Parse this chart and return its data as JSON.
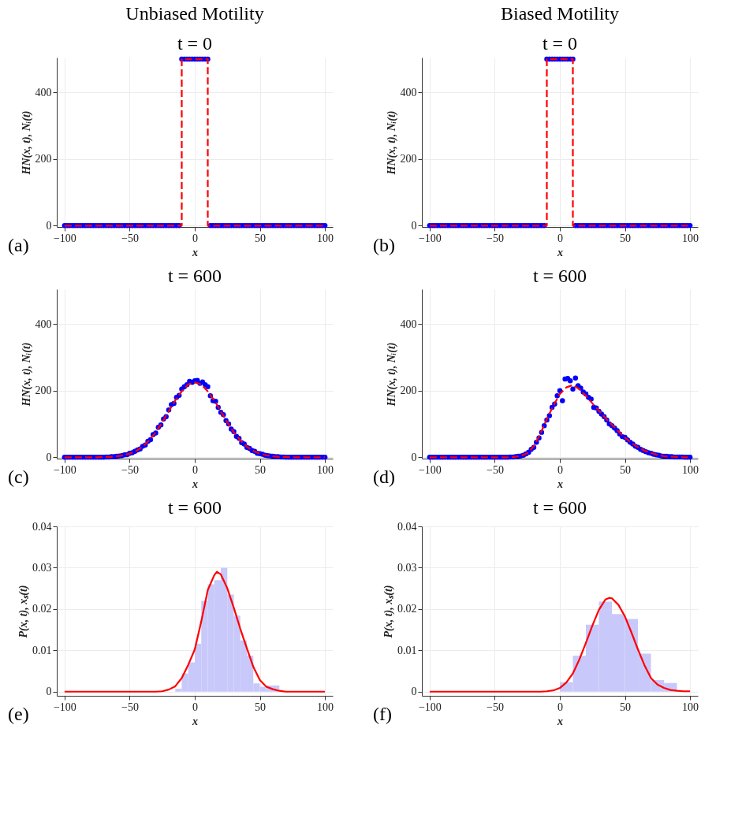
{
  "chart_data": [
    {
      "type": "scatter",
      "title": "Unbiased Motility",
      "subtitle": "t = 0",
      "xlabel": "x",
      "ylabel": "HN(x, t),   Nᵢ(t)",
      "annotations": [
        "(a)"
      ],
      "xlim": [
        -106,
        106
      ],
      "ylim": [
        -4,
        505
      ],
      "xticks": [
        -100,
        -50,
        0,
        50,
        100
      ],
      "yticks": [
        0,
        200,
        400
      ],
      "grid": true,
      "x": [
        -100,
        -98,
        -96,
        -94,
        -92,
        -90,
        -88,
        -86,
        -84,
        -82,
        -80,
        -78,
        -76,
        -74,
        -72,
        -70,
        -68,
        -66,
        -64,
        -62,
        -60,
        -58,
        -56,
        -54,
        -52,
        -50,
        -48,
        -46,
        -44,
        -42,
        -40,
        -38,
        -36,
        -34,
        -32,
        -30,
        -28,
        -26,
        -24,
        -22,
        -20,
        -18,
        -16,
        -14,
        -12,
        -10,
        -8,
        -6,
        -4,
        -2,
        0,
        2,
        4,
        6,
        8,
        10,
        12,
        14,
        16,
        18,
        20,
        22,
        24,
        26,
        28,
        30,
        32,
        34,
        36,
        38,
        40,
        42,
        44,
        46,
        48,
        50,
        52,
        54,
        56,
        58,
        60,
        62,
        64,
        66,
        68,
        70,
        72,
        74,
        76,
        78,
        80,
        82,
        84,
        86,
        88,
        90,
        92,
        94,
        96,
        98,
        100
      ],
      "series": [
        {
          "color": "#0000ff",
          "marker": "circle",
          "values": [
            0,
            0,
            0,
            0,
            0,
            0,
            0,
            0,
            0,
            0,
            0,
            0,
            0,
            0,
            0,
            0,
            0,
            0,
            0,
            0,
            0,
            0,
            0,
            0,
            0,
            0,
            0,
            0,
            0,
            0,
            0,
            0,
            0,
            0,
            0,
            0,
            0,
            0,
            0,
            0,
            0,
            0,
            0,
            0,
            0,
            500,
            500,
            500,
            500,
            500,
            500,
            500,
            500,
            500,
            500,
            500,
            0,
            0,
            0,
            0,
            0,
            0,
            0,
            0,
            0,
            0,
            0,
            0,
            0,
            0,
            0,
            0,
            0,
            0,
            0,
            0,
            0,
            0,
            0,
            0,
            0,
            0,
            0,
            0,
            0,
            0,
            0,
            0,
            0,
            0,
            0,
            0,
            0,
            0,
            0,
            0,
            0,
            0,
            0,
            0,
            0
          ]
        },
        {
          "type": "line",
          "color": "#ff0000",
          "line_style": "dashed",
          "x": [
            -100,
            -10,
            -10,
            10,
            10,
            100
          ],
          "values": [
            0,
            0,
            500,
            500,
            0,
            0
          ]
        }
      ]
    },
    {
      "type": "scatter",
      "title": "Biased Motility",
      "subtitle": "t = 0",
      "xlabel": "x",
      "ylabel": "HN(x, t),   Nᵢ(t)",
      "annotations": [
        "(b)"
      ],
      "xlim": [
        -106,
        106
      ],
      "ylim": [
        -4,
        505
      ],
      "xticks": [
        -100,
        -50,
        0,
        50,
        100
      ],
      "yticks": [
        0,
        200,
        400
      ],
      "grid": true,
      "x": [
        -100,
        -98,
        -96,
        -94,
        -92,
        -90,
        -88,
        -86,
        -84,
        -82,
        -80,
        -78,
        -76,
        -74,
        -72,
        -70,
        -68,
        -66,
        -64,
        -62,
        -60,
        -58,
        -56,
        -54,
        -52,
        -50,
        -48,
        -46,
        -44,
        -42,
        -40,
        -38,
        -36,
        -34,
        -32,
        -30,
        -28,
        -26,
        -24,
        -22,
        -20,
        -18,
        -16,
        -14,
        -12,
        -10,
        -8,
        -6,
        -4,
        -2,
        0,
        2,
        4,
        6,
        8,
        10,
        12,
        14,
        16,
        18,
        20,
        22,
        24,
        26,
        28,
        30,
        32,
        34,
        36,
        38,
        40,
        42,
        44,
        46,
        48,
        50,
        52,
        54,
        56,
        58,
        60,
        62,
        64,
        66,
        68,
        70,
        72,
        74,
        76,
        78,
        80,
        82,
        84,
        86,
        88,
        90,
        92,
        94,
        96,
        98,
        100
      ],
      "series": [
        {
          "color": "#0000ff",
          "marker": "circle",
          "values": [
            0,
            0,
            0,
            0,
            0,
            0,
            0,
            0,
            0,
            0,
            0,
            0,
            0,
            0,
            0,
            0,
            0,
            0,
            0,
            0,
            0,
            0,
            0,
            0,
            0,
            0,
            0,
            0,
            0,
            0,
            0,
            0,
            0,
            0,
            0,
            0,
            0,
            0,
            0,
            0,
            0,
            0,
            0,
            0,
            0,
            500,
            500,
            500,
            500,
            500,
            500,
            500,
            500,
            500,
            500,
            500,
            0,
            0,
            0,
            0,
            0,
            0,
            0,
            0,
            0,
            0,
            0,
            0,
            0,
            0,
            0,
            0,
            0,
            0,
            0,
            0,
            0,
            0,
            0,
            0,
            0,
            0,
            0,
            0,
            0,
            0,
            0,
            0,
            0,
            0,
            0,
            0,
            0,
            0,
            0,
            0,
            0,
            0,
            0,
            0,
            0
          ]
        },
        {
          "type": "line",
          "color": "#ff0000",
          "line_style": "dashed",
          "x": [
            -100,
            -10,
            -10,
            10,
            10,
            100
          ],
          "values": [
            0,
            0,
            500,
            500,
            0,
            0
          ]
        }
      ]
    },
    {
      "type": "scatter",
      "title": "t = 600",
      "xlabel": "x",
      "ylabel": "HN(x, t),   Nᵢ(t)",
      "annotations": [
        "(c)"
      ],
      "xlim": [
        -106,
        106
      ],
      "ylim": [
        -4,
        505
      ],
      "xticks": [
        -100,
        -50,
        0,
        50,
        100
      ],
      "yticks": [
        0,
        200,
        400
      ],
      "grid": true,
      "x": [
        -100,
        -98,
        -96,
        -94,
        -92,
        -90,
        -88,
        -86,
        -84,
        -82,
        -80,
        -78,
        -76,
        -74,
        -72,
        -70,
        -68,
        -66,
        -64,
        -62,
        -60,
        -58,
        -56,
        -54,
        -52,
        -50,
        -48,
        -46,
        -44,
        -42,
        -40,
        -38,
        -36,
        -34,
        -32,
        -30,
        -28,
        -26,
        -24,
        -22,
        -20,
        -18,
        -16,
        -14,
        -12,
        -10,
        -8,
        -6,
        -4,
        -2,
        0,
        2,
        4,
        6,
        8,
        10,
        12,
        14,
        16,
        18,
        20,
        22,
        24,
        26,
        28,
        30,
        32,
        34,
        36,
        38,
        40,
        42,
        44,
        46,
        48,
        50,
        52,
        54,
        56,
        58,
        60,
        62,
        64,
        66,
        68,
        70,
        72,
        74,
        76,
        78,
        80,
        82,
        84,
        86,
        88,
        90,
        92,
        94,
        96,
        98,
        100
      ],
      "series": [
        {
          "color": "#0000ff",
          "marker": "circle",
          "values": [
            0,
            0,
            0,
            0,
            0,
            0,
            0,
            0,
            0,
            0,
            0,
            0,
            0,
            0,
            0,
            0,
            1,
            1,
            2,
            2,
            3,
            4,
            5,
            7,
            8,
            12,
            14,
            18,
            22,
            25,
            33,
            37,
            48,
            53,
            68,
            73,
            90,
            97,
            115,
            122,
            142,
            158,
            162,
            180,
            186,
            205,
            212,
            218,
            228,
            225,
            230,
            231,
            222,
            226,
            218,
            212,
            185,
            170,
            168,
            150,
            135,
            128,
            110,
            100,
            85,
            77,
            63,
            57,
            44,
            40,
            30,
            27,
            20,
            18,
            12,
            11,
            9,
            6,
            5,
            4,
            3,
            2,
            2,
            1,
            1,
            0,
            0,
            0,
            0,
            0,
            0,
            0,
            0,
            0,
            0,
            0,
            0,
            0,
            0,
            0,
            0
          ]
        },
        {
          "type": "line",
          "color": "#ff0000",
          "line_style": "dashed",
          "x": [
            -100,
            -95,
            -90,
            -85,
            -80,
            -75,
            -70,
            -65,
            -60,
            -55,
            -50,
            -45,
            -40,
            -35,
            -30,
            -25,
            -20,
            -15,
            -10,
            -5,
            0,
            5,
            10,
            15,
            20,
            25,
            30,
            35,
            40,
            45,
            50,
            55,
            60,
            65,
            70,
            75,
            80,
            85,
            90,
            95,
            100
          ],
          "values": [
            0,
            0,
            0,
            0,
            0,
            0,
            1,
            1,
            3,
            6,
            11,
            19,
            32,
            51,
            75,
            105,
            138,
            171,
            198,
            219,
            225,
            219,
            198,
            171,
            138,
            105,
            75,
            51,
            32,
            19,
            11,
            6,
            3,
            1,
            1,
            0,
            0,
            0,
            0,
            0,
            0
          ]
        }
      ]
    },
    {
      "type": "scatter",
      "title": "t = 600",
      "xlabel": "x",
      "ylabel": "HN(x, t),   Nᵢ(t)",
      "annotations": [
        "(d)"
      ],
      "xlim": [
        -106,
        106
      ],
      "ylim": [
        -4,
        505
      ],
      "xticks": [
        -100,
        -50,
        0,
        50,
        100
      ],
      "yticks": [
        0,
        200,
        400
      ],
      "grid": true,
      "x": [
        -100,
        -98,
        -96,
        -94,
        -92,
        -90,
        -88,
        -86,
        -84,
        -82,
        -80,
        -78,
        -76,
        -74,
        -72,
        -70,
        -68,
        -66,
        -64,
        -62,
        -60,
        -58,
        -56,
        -54,
        -52,
        -50,
        -48,
        -46,
        -44,
        -42,
        -40,
        -38,
        -36,
        -34,
        -32,
        -30,
        -28,
        -26,
        -24,
        -22,
        -20,
        -18,
        -16,
        -14,
        -12,
        -10,
        -8,
        -6,
        -4,
        -2,
        0,
        2,
        4,
        6,
        8,
        10,
        12,
        14,
        16,
        18,
        20,
        22,
        24,
        26,
        28,
        30,
        32,
        34,
        36,
        38,
        40,
        42,
        44,
        46,
        48,
        50,
        52,
        54,
        56,
        58,
        60,
        62,
        64,
        66,
        68,
        70,
        72,
        74,
        76,
        78,
        80,
        82,
        84,
        86,
        88,
        90,
        92,
        94,
        96,
        98,
        100
      ],
      "series": [
        {
          "color": "#0000ff",
          "marker": "circle",
          "values": [
            0,
            0,
            0,
            0,
            0,
            0,
            0,
            0,
            0,
            0,
            0,
            0,
            0,
            0,
            0,
            0,
            0,
            0,
            0,
            0,
            0,
            0,
            0,
            0,
            0,
            0,
            0,
            0,
            0,
            0,
            0,
            1,
            1,
            2,
            3,
            4,
            6,
            10,
            15,
            24,
            30,
            45,
            58,
            75,
            95,
            112,
            125,
            150,
            160,
            185,
            200,
            170,
            235,
            237,
            230,
            205,
            238,
            215,
            208,
            196,
            190,
            180,
            175,
            150,
            148,
            138,
            130,
            122,
            112,
            100,
            95,
            88,
            80,
            70,
            62,
            60,
            52,
            45,
            40,
            33,
            30,
            24,
            20,
            17,
            14,
            12,
            9,
            7,
            6,
            4,
            3,
            3,
            2,
            2,
            1,
            1,
            1,
            1,
            0,
            0,
            0
          ]
        },
        {
          "type": "line",
          "color": "#ff0000",
          "line_style": "dashed",
          "x": [
            -100,
            -95,
            -90,
            -85,
            -80,
            -75,
            -70,
            -65,
            -60,
            -55,
            -50,
            -45,
            -40,
            -35,
            -30,
            -25,
            -20,
            -15,
            -10,
            -5,
            0,
            5,
            10,
            15,
            20,
            25,
            30,
            35,
            40,
            45,
            50,
            55,
            60,
            65,
            70,
            75,
            80,
            85,
            90,
            95,
            100
          ],
          "values": [
            0,
            0,
            0,
            0,
            0,
            0,
            0,
            0,
            0,
            0,
            0,
            0,
            0,
            1,
            4,
            12,
            33,
            70,
            115,
            155,
            190,
            210,
            217,
            205,
            185,
            162,
            140,
            118,
            98,
            78,
            59,
            43,
            30,
            20,
            13,
            7,
            3,
            2,
            1,
            0,
            0
          ]
        }
      ]
    },
    {
      "type": "histogram",
      "title": "t = 600",
      "xlabel": "x",
      "ylabel": "P(x, t),   xₛ(t)",
      "annotations": [
        "(e)"
      ],
      "xlim": [
        -106,
        106
      ],
      "ylim": [
        -0.001,
        0.04
      ],
      "xticks": [
        -100,
        -50,
        0,
        50,
        100
      ],
      "yticks": [
        0,
        0.01,
        0.02,
        0.03,
        0.04
      ],
      "grid": true,
      "series": [
        {
          "color": "#c8c8fa",
          "bins": [
            -15,
            -10,
            -5,
            0,
            5,
            10,
            15,
            20,
            25,
            30,
            35,
            40,
            45,
            50,
            55,
            60,
            65
          ],
          "values": [
            0.0007,
            0.0044,
            0.0071,
            0.0116,
            0.022,
            0.026,
            0.027,
            0.03,
            0.0235,
            0.0184,
            0.0124,
            0.0087,
            0.002,
            0.0012,
            0.0015,
            0.0015
          ]
        },
        {
          "type": "line",
          "color": "#ff0000",
          "line_style": "solid",
          "x": [
            -100,
            -95,
            -90,
            -85,
            -80,
            -75,
            -70,
            -65,
            -60,
            -55,
            -50,
            -45,
            -40,
            -35,
            -30,
            -25,
            -20,
            -15,
            -10,
            -5,
            0,
            5,
            10,
            15,
            17,
            20,
            25,
            30,
            35,
            40,
            45,
            50,
            55,
            60,
            65,
            70,
            75,
            80,
            85,
            90,
            95,
            100
          ],
          "values": [
            0,
            0,
            0,
            0,
            0,
            0,
            0,
            0,
            0,
            0,
            0,
            0,
            0,
            0,
            0,
            0.0001,
            0.0005,
            0.0013,
            0.0033,
            0.0065,
            0.0102,
            0.017,
            0.0246,
            0.0282,
            0.029,
            0.0284,
            0.025,
            0.0203,
            0.0152,
            0.0105,
            0.006,
            0.0028,
            0.0012,
            0.0006,
            0.0002,
            0,
            0,
            0,
            0,
            0,
            0,
            0
          ]
        }
      ]
    },
    {
      "type": "histogram",
      "title": "t = 600",
      "xlabel": "x",
      "ylabel": "P(x, t),   xₛ(t)",
      "annotations": [
        "(f)"
      ],
      "xlim": [
        -106,
        106
      ],
      "ylim": [
        -0.001,
        0.04
      ],
      "xticks": [
        -100,
        -50,
        0,
        50,
        100
      ],
      "yticks": [
        0,
        0.01,
        0.02,
        0.03,
        0.04
      ],
      "grid": true,
      "series": [
        {
          "color": "#c8c8fa",
          "bins": [
            0,
            10,
            20,
            30,
            40,
            50,
            60,
            70,
            80,
            90
          ],
          "values": [
            0.0023,
            0.0087,
            0.0162,
            0.0218,
            0.0188,
            0.0176,
            0.0092,
            0.0028,
            0.0021
          ]
        },
        {
          "type": "line",
          "color": "#ff0000",
          "line_style": "solid",
          "x": [
            -100,
            -95,
            -90,
            -85,
            -80,
            -75,
            -70,
            -65,
            -60,
            -55,
            -50,
            -45,
            -40,
            -35,
            -30,
            -25,
            -20,
            -15,
            -10,
            -5,
            0,
            5,
            10,
            15,
            20,
            25,
            30,
            35,
            38,
            40,
            45,
            50,
            55,
            60,
            65,
            70,
            75,
            80,
            85,
            90,
            95,
            100
          ],
          "values": [
            0,
            0,
            0,
            0,
            0,
            0,
            0,
            0,
            0,
            0,
            0,
            0,
            0,
            0,
            0,
            0,
            0,
            0,
            0.0001,
            0.0003,
            0.0009,
            0.0022,
            0.0044,
            0.0078,
            0.0118,
            0.016,
            0.0198,
            0.0223,
            0.0227,
            0.0226,
            0.021,
            0.0182,
            0.0143,
            0.0102,
            0.0064,
            0.0033,
            0.0017,
            0.0009,
            0.0004,
            0.0002,
            0.0001,
            0.0001
          ]
        }
      ]
    }
  ]
}
